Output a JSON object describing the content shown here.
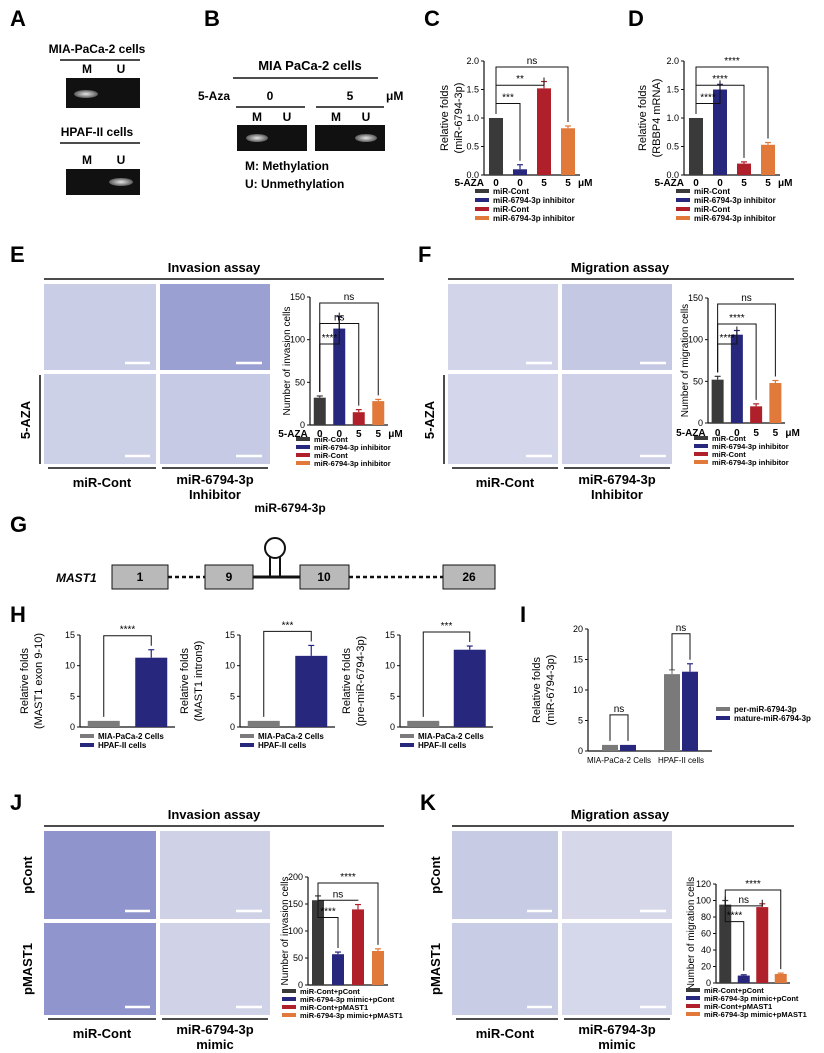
{
  "colors": {
    "cont": "#3a3a3a",
    "inhib": "#27277e",
    "cont5": "#b0202a",
    "inhib5": "#e0793a",
    "gel": "#111111",
    "band": "#cfcfcf",
    "micro": "#c9cde6",
    "gene": "#b9b9b9",
    "gray": "#7a7a7a"
  },
  "panel_letters": {
    "A": "A",
    "B": "B",
    "C": "C",
    "D": "D",
    "E": "E",
    "F": "F",
    "G": "G",
    "H": "H",
    "I": "I",
    "J": "J",
    "K": "K"
  },
  "A": {
    "cell1": "MIA-PaCa-2 cells",
    "cell2": "HPAF-II cells",
    "m": "M",
    "u": "U"
  },
  "B": {
    "title": "MIA PaCa-2 cells",
    "aza": "5-Aza",
    "dose0": "0",
    "dose5": "5",
    "unit": "μM",
    "m": "M",
    "u": "U",
    "legend_m": "M: Methylation",
    "legend_u": "U: Unmethylation"
  },
  "E": {
    "title": "Invasion assay",
    "row_label": "5-AZA",
    "col1": "miR-Cont",
    "col2a": "miR-6794-3p",
    "col2b": "Inhibitor"
  },
  "F": {
    "title": "Migration assay",
    "row_label": "5-AZA",
    "col1": "miR-Cont",
    "col2a": "miR-6794-3p",
    "col2b": "Inhibitor"
  },
  "G": {
    "gene": "MAST1",
    "mirna": "miR-6794-3p",
    "exons": [
      "1",
      "9",
      "10",
      "26"
    ]
  },
  "J": {
    "title": "Invasion assay",
    "row1": "pCont",
    "row2": "pMAST1",
    "col1": "miR-Cont",
    "col2a": "miR-6794-3p",
    "col2b": "mimic"
  },
  "K": {
    "title": "Migration assay",
    "row1": "pCont",
    "row2": "pMAST1",
    "col1": "miR-Cont",
    "col2a": "miR-6794-3p",
    "col2b": "mimic"
  },
  "chart_data": [
    {
      "id": "C",
      "type": "bar",
      "ylabel": [
        "Relative folds",
        "(miR-6794-3p)"
      ],
      "ylim": [
        0,
        2.0
      ],
      "ticks": [
        "0.0",
        "0.5",
        "1.0",
        "1.5",
        "2.0"
      ],
      "values": [
        1.0,
        0.1,
        1.52,
        0.82
      ],
      "errors": [
        0,
        0.08,
        0.12,
        0.04
      ],
      "colors": [
        "#3a3a3a",
        "#27277e",
        "#b0202a",
        "#e0793a"
      ],
      "xrow_label": "5-AZA",
      "xrow": [
        "0",
        "0",
        "5",
        "5"
      ],
      "xunit": "μM",
      "legend": [
        "miR-Cont",
        "miR-6794-3p inhibitor",
        "miR-Cont",
        "miR-6794-3p inhibitor"
      ],
      "brackets": [
        {
          "from": 0,
          "to": 1,
          "label": "***"
        },
        {
          "from": 0,
          "to": 2,
          "label": "**"
        },
        {
          "from": 0,
          "to": 3,
          "label": "ns"
        }
      ]
    },
    {
      "id": "D",
      "type": "bar",
      "ylabel": [
        "Relative folds",
        "(RBBP4 mRNA)"
      ],
      "ylim": [
        0,
        2.0
      ],
      "ticks": [
        "0.0",
        "0.5",
        "1.0",
        "1.5",
        "2.0"
      ],
      "values": [
        1.0,
        1.5,
        0.2,
        0.53
      ],
      "errors": [
        0,
        0.09,
        0.03,
        0.04
      ],
      "colors": [
        "#3a3a3a",
        "#27277e",
        "#b0202a",
        "#e0793a"
      ],
      "xrow_label": "5-AZA",
      "xrow": [
        "0",
        "0",
        "5",
        "5"
      ],
      "xunit": "μM",
      "legend": [
        "miR-Cont",
        "miR-6794-3p inhibitor",
        "miR-Cont",
        "miR-6794-3p inhibitor"
      ],
      "brackets": [
        {
          "from": 0,
          "to": 1,
          "label": "****"
        },
        {
          "from": 0,
          "to": 2,
          "label": "****"
        },
        {
          "from": 0,
          "to": 3,
          "label": "****"
        }
      ]
    },
    {
      "id": "E",
      "type": "bar",
      "ylabel": [
        "Number of invasion cells"
      ],
      "ylim": [
        0,
        150
      ],
      "ticks": [
        "0",
        "50",
        "100",
        "150"
      ],
      "values": [
        32,
        113,
        15,
        28
      ],
      "errors": [
        2,
        14,
        3,
        2
      ],
      "colors": [
        "#3a3a3a",
        "#27277e",
        "#b0202a",
        "#e0793a"
      ],
      "xrow_label": "5-AZA",
      "xrow": [
        "0",
        "0",
        "5",
        "5"
      ],
      "xunit": "μM",
      "legend": [
        "miR-Cont",
        "miR-6794-3p inhibitor",
        "miR-Cont",
        "miR-6794-3p inhibitor"
      ],
      "brackets": [
        {
          "from": 0,
          "to": 1,
          "label": "****"
        },
        {
          "from": 0,
          "to": 2,
          "label": "ns"
        },
        {
          "from": 0,
          "to": 3,
          "label": "ns"
        }
      ]
    },
    {
      "id": "F",
      "type": "bar",
      "ylabel": [
        "Number of migration cells"
      ],
      "ylim": [
        0,
        150
      ],
      "ticks": [
        "0",
        "50",
        "100",
        "150"
      ],
      "values": [
        52,
        106,
        20,
        48
      ],
      "errors": [
        4,
        5,
        3,
        3
      ],
      "colors": [
        "#3a3a3a",
        "#27277e",
        "#b0202a",
        "#e0793a"
      ],
      "xrow_label": "5-AZA",
      "xrow": [
        "0",
        "0",
        "5",
        "5"
      ],
      "xunit": "μM",
      "legend": [
        "miR-Cont",
        "miR-6794-3p inhibitor",
        "miR-Cont",
        "miR-6794-3p inhibitor"
      ],
      "brackets": [
        {
          "from": 0,
          "to": 1,
          "label": "****"
        },
        {
          "from": 0,
          "to": 2,
          "label": "****"
        },
        {
          "from": 0,
          "to": 3,
          "label": "ns"
        }
      ]
    },
    {
      "id": "H1",
      "type": "bar",
      "ylabel": [
        "Relative folds",
        "(MAST1 exon 9-10)"
      ],
      "ylim": [
        0,
        15
      ],
      "ticks": [
        "0",
        "5",
        "10",
        "15"
      ],
      "values": [
        1.0,
        11.3
      ],
      "errors": [
        0,
        1.3
      ],
      "colors": [
        "#7a7a7a",
        "#27277e"
      ],
      "legend": [
        "MIA-PaCa-2 Cells",
        "HPAF-II cells"
      ],
      "brackets": [
        {
          "from": 0,
          "to": 1,
          "label": "****"
        }
      ]
    },
    {
      "id": "H2",
      "type": "bar",
      "ylabel": [
        "Relative folds",
        "(MAST1 intron9)"
      ],
      "ylim": [
        0,
        15
      ],
      "ticks": [
        "0",
        "5",
        "10",
        "15"
      ],
      "values": [
        1.0,
        11.6
      ],
      "errors": [
        0,
        1.7
      ],
      "colors": [
        "#7a7a7a",
        "#27277e"
      ],
      "legend": [
        "MIA-PaCa-2 Cells",
        "HPAF-II cells"
      ],
      "brackets": [
        {
          "from": 0,
          "to": 1,
          "label": "***"
        }
      ]
    },
    {
      "id": "H3",
      "type": "bar",
      "ylabel": [
        "Relative folds",
        "(pre-miR-6794-3p)"
      ],
      "ylim": [
        0,
        15
      ],
      "ticks": [
        "0",
        "5",
        "10",
        "15"
      ],
      "values": [
        1.0,
        12.6
      ],
      "errors": [
        0,
        0.6
      ],
      "colors": [
        "#7a7a7a",
        "#27277e"
      ],
      "legend": [
        "MIA-PaCa-2 Cells",
        "HPAF-II cells"
      ],
      "brackets": [
        {
          "from": 0,
          "to": 1,
          "label": "***"
        }
      ]
    },
    {
      "id": "I",
      "type": "bar",
      "ylabel": [
        "Relative folds",
        "(miR-6794-3p)"
      ],
      "ylim": [
        0,
        20
      ],
      "ticks": [
        "0",
        "5",
        "10",
        "15",
        "20"
      ],
      "categories": [
        "MIA-PaCa-2 Cells",
        "HPAF-II cells"
      ],
      "series": [
        {
          "name": "per-miR-6794-3p",
          "values": [
            1.0,
            12.6
          ],
          "errors": [
            0,
            0.7
          ]
        },
        {
          "name": "mature-miR-6794-3p",
          "values": [
            1.0,
            13.0
          ],
          "errors": [
            0,
            1.3
          ]
        }
      ],
      "colors": [
        "#7a7a7a",
        "#27277e"
      ],
      "legend": [
        "per-miR-6794-3p",
        "mature-miR-6794-3p"
      ],
      "brackets": [
        {
          "group": 0,
          "label": "ns"
        },
        {
          "group": 1,
          "label": "ns"
        }
      ]
    },
    {
      "id": "J",
      "type": "bar",
      "ylabel": [
        "Number of invasion cells"
      ],
      "ylim": [
        0,
        200
      ],
      "ticks": [
        "0",
        "50",
        "100",
        "150",
        "200"
      ],
      "values": [
        157,
        57,
        140,
        63
      ],
      "errors": [
        8,
        4,
        9,
        4
      ],
      "colors": [
        "#3a3a3a",
        "#27277e",
        "#b0202a",
        "#e0793a"
      ],
      "legend": [
        "miR-Cont+pCont",
        "miR-6794-3p mimic+pCont",
        "miR-Cont+pMAST1",
        "miR-6794-3p mimic+pMAST1"
      ],
      "brackets": [
        {
          "from": 0,
          "to": 1,
          "label": "****"
        },
        {
          "from": 0,
          "to": 2,
          "label": "ns"
        },
        {
          "from": 0,
          "to": 3,
          "label": "****"
        }
      ]
    },
    {
      "id": "K",
      "type": "bar",
      "ylabel": [
        "Number of migration cells"
      ],
      "ylim": [
        0,
        120
      ],
      "ticks": [
        "0",
        "20",
        "40",
        "60",
        "80",
        "100",
        "120"
      ],
      "values": [
        95,
        9,
        92,
        11
      ],
      "errors": [
        5,
        1,
        4,
        1
      ],
      "colors": [
        "#3a3a3a",
        "#27277e",
        "#b0202a",
        "#e0793a"
      ],
      "legend": [
        "miR-Cont+pCont",
        "miR-6794-3p mimic+pCont",
        "miR-Cont+pMAST1",
        "miR-6794-3p mimic+pMAST1"
      ],
      "brackets": [
        {
          "from": 0,
          "to": 1,
          "label": "****"
        },
        {
          "from": 0,
          "to": 2,
          "label": "ns"
        },
        {
          "from": 0,
          "to": 3,
          "label": "****"
        }
      ]
    }
  ]
}
